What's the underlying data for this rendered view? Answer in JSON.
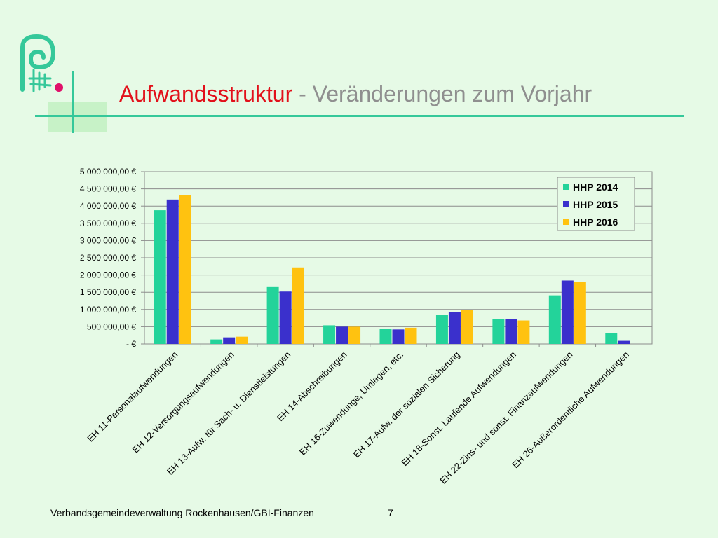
{
  "title": {
    "main": "Aufwandsstruktur",
    "sub": " - Veränderungen zum Vorjahr"
  },
  "footer": "Verbandsgemeindeverwaltung Rockenhausen/GBI-Finanzen",
  "page_number": "7",
  "colors": {
    "accent": "#35c89a",
    "title": "#e2101a",
    "subtitle": "#8f8f8f",
    "logo_magenta": "#e0106a"
  },
  "logo_icon": "spiral-logo-icon",
  "chart_data": {
    "type": "bar",
    "categories": [
      "EH 11-Personalaufwendungen",
      "EH 12-Versorgungsaufwendungen",
      "EH 13-Aufw. für Sach- u. Dienstleistungen",
      "EH 14-Abschreibungen",
      "EH 16-Zuwendunge, Umlagen, etc.",
      "EH 17-Aufw. der sozialen Sicherung",
      "EH 18-Sonst. Laufende Aufwendungen",
      "EH 22-Zins- und sonst. Finanzaufwendungen",
      "EH 26-Außerordentliche Aufwendungen"
    ],
    "series": [
      {
        "name": "HHP 2014",
        "color": "#23d39a",
        "values": [
          3880000,
          130000,
          1670000,
          540000,
          430000,
          850000,
          720000,
          1410000,
          320000
        ]
      },
      {
        "name": "HHP 2015",
        "color": "#3a30cc",
        "values": [
          4190000,
          190000,
          1520000,
          500000,
          420000,
          920000,
          720000,
          1840000,
          90000
        ]
      },
      {
        "name": "HHP 2016",
        "color": "#ffc210",
        "values": [
          4320000,
          210000,
          2220000,
          500000,
          470000,
          980000,
          680000,
          1800000,
          0
        ]
      }
    ],
    "y_ticks": [
      {
        "value": 0,
        "label": "-   €"
      },
      {
        "value": 500000,
        "label": "500 000,00 €"
      },
      {
        "value": 1000000,
        "label": "1 000 000,00 €"
      },
      {
        "value": 1500000,
        "label": "1 500 000,00 €"
      },
      {
        "value": 2000000,
        "label": "2 000 000,00 €"
      },
      {
        "value": 2500000,
        "label": "2 500 000,00 €"
      },
      {
        "value": 3000000,
        "label": "3 000 000,00 €"
      },
      {
        "value": 3500000,
        "label": "3 500 000,00 €"
      },
      {
        "value": 4000000,
        "label": "4 000 000,00 €"
      },
      {
        "value": 4500000,
        "label": "4 500 000,00 €"
      },
      {
        "value": 5000000,
        "label": "5 000 000,00 €"
      }
    ],
    "ylim": [
      0,
      5000000
    ],
    "grid": true,
    "legend": "top-right"
  }
}
